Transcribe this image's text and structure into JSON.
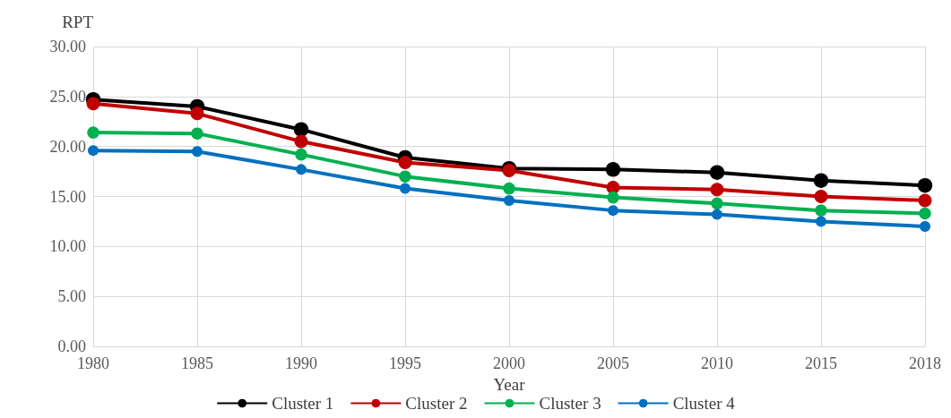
{
  "chart_data": {
    "type": "line",
    "xlabel": "Year",
    "ylabel": "RPT",
    "categories": [
      "1980",
      "1985",
      "1990",
      "1995",
      "2000",
      "2005",
      "2010",
      "2015",
      "2018"
    ],
    "series": [
      {
        "name": "Cluster 1",
        "color": "#000000",
        "values": [
          24.7,
          24.0,
          21.7,
          18.9,
          17.8,
          17.7,
          17.4,
          16.6,
          16.1
        ]
      },
      {
        "name": "Cluster 2",
        "color": "#c00000",
        "values": [
          24.3,
          23.3,
          20.5,
          18.4,
          17.6,
          15.9,
          15.7,
          15.0,
          14.6
        ]
      },
      {
        "name": "Cluster 3",
        "color": "#00b050",
        "values": [
          21.4,
          21.3,
          19.2,
          17.0,
          15.8,
          14.9,
          14.3,
          13.6,
          13.3
        ]
      },
      {
        "name": "Cluster 4",
        "color": "#0070c0",
        "values": [
          19.6,
          19.5,
          17.7,
          15.8,
          14.6,
          13.6,
          13.2,
          12.5,
          12.0
        ]
      }
    ],
    "ylim": [
      0,
      30
    ],
    "yticks": [
      {
        "value": 0,
        "label": "0.00"
      },
      {
        "value": 5,
        "label": "5.00"
      },
      {
        "value": 10,
        "label": "10.00"
      },
      {
        "value": 15,
        "label": "15.00"
      },
      {
        "value": 20,
        "label": "20.00"
      },
      {
        "value": 25,
        "label": "25.00"
      },
      {
        "value": 30,
        "label": "30.00"
      }
    ],
    "grid": true,
    "legend": "bottom",
    "marker": "circle",
    "line_style": "solid"
  }
}
